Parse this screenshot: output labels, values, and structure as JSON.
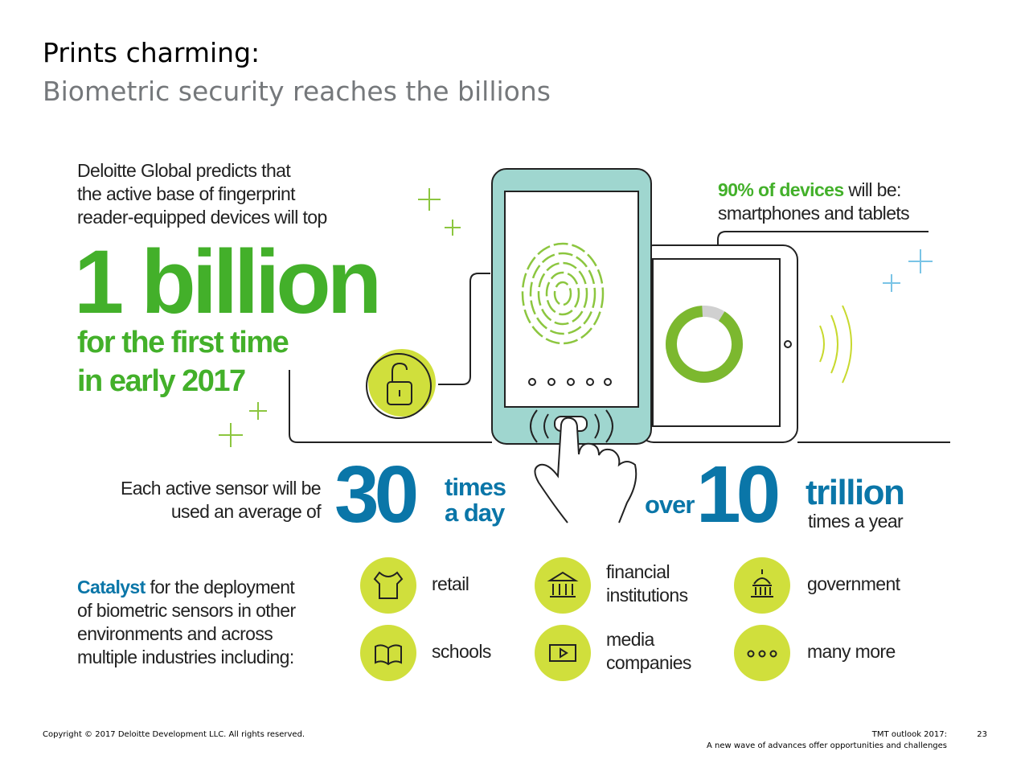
{
  "header": {
    "title": "Prints charming:",
    "subtitle": "Biometric security reaches the billions"
  },
  "prediction": {
    "lines": [
      "Deloitte Global predicts that",
      "the active base of fingerprint",
      "reader-equipped devices will top"
    ],
    "headline": "1 billion",
    "sub_lines": [
      "for the first time",
      "in early 2017"
    ]
  },
  "devices": {
    "highlight": "90% of devices",
    "rest": " will be:",
    "line2": "smartphones and tablets"
  },
  "usage": {
    "lines": [
      "Each active sensor will be",
      "used an average of"
    ],
    "number": "30",
    "unit_lines": [
      "times",
      "a day"
    ],
    "prefix": "over",
    "total_number": "10",
    "total_unit": "trillion",
    "total_sub": "times a year"
  },
  "catalyst": {
    "highlight": "Catalyst",
    "lines": [
      " for the deployment",
      "of biometric sensors in other",
      "environments and across",
      "multiple industries including:"
    ],
    "industries": [
      [
        "retail"
      ],
      [
        "financial",
        "institutions"
      ],
      [
        "government"
      ],
      [
        "schools"
      ],
      [
        "media",
        "companies"
      ],
      [
        "many more"
      ]
    ]
  },
  "footer": {
    "copyright": "Copyright © 2017 Deloitte Development LLC. All rights reserved.",
    "publication": "TMT outlook 2017:",
    "publication_sub": "A new wave of advances offer opportunities and challenges",
    "page": "23"
  }
}
